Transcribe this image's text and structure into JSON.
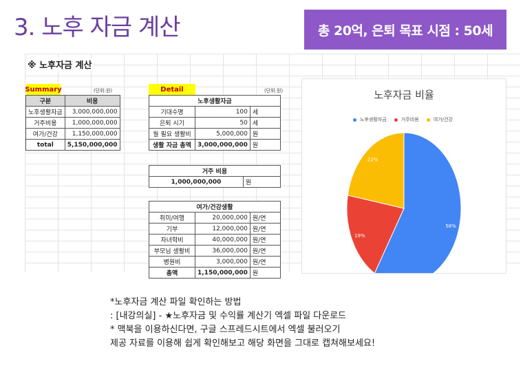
{
  "page": {
    "title": "3. 노후 자금 계산",
    "banner": "총 20억, 은퇴 목표 시점 : 50세"
  },
  "sheet": {
    "title": "※ 노후자금 계산",
    "summary": {
      "label": "Summary",
      "unit": "(단위:원)",
      "headers": [
        "구분",
        "비용"
      ],
      "rows": [
        {
          "name": "노후생활자금",
          "value": "3,000,000,000"
        },
        {
          "name": "거주비용",
          "value": "1,000,000,000"
        },
        {
          "name": "여가/건강",
          "value": "1,150,000,000"
        }
      ],
      "total": {
        "name": "total",
        "value": "5,150,000,000"
      }
    },
    "detail": {
      "label": "Detail",
      "unit": "(단위:원)",
      "living": {
        "header": "노후생활자금",
        "rows": [
          {
            "name": "기대수명",
            "value": "100",
            "unit": "세"
          },
          {
            "name": "은퇴 시기",
            "value": "50",
            "unit": "세"
          },
          {
            "name": "월 필요 생활비",
            "value": "5,000,000",
            "unit": "원"
          }
        ],
        "total": {
          "name": "생활 자금 총액",
          "value": "3,000,000,000",
          "unit": "원"
        }
      },
      "housing": {
        "header": "거주 비용",
        "value": "1,000,000,000",
        "unit": "원"
      },
      "leisure": {
        "header": "여가/건강생활",
        "rows": [
          {
            "name": "취미/여행",
            "value": "20,000,000",
            "unit": "원/연"
          },
          {
            "name": "기부",
            "value": "12,000,000",
            "unit": "원/연"
          },
          {
            "name": "자녀학비",
            "value": "40,000,000",
            "unit": "원/연"
          },
          {
            "name": "부모님 생활비",
            "value": "36,000,000",
            "unit": "원/연"
          },
          {
            "name": "병원비",
            "value": "3,000,000",
            "unit": "원/연"
          }
        ],
        "total": {
          "name": "총액",
          "value": "1,150,000,000",
          "unit": "원"
        }
      }
    }
  },
  "chart_data": {
    "type": "pie",
    "title": "노후자금 비율",
    "categories": [
      "노후생활자금",
      "거주비용",
      "여가/건강"
    ],
    "values": [
      58,
      19,
      22
    ],
    "labels": [
      "58%",
      "19%",
      "22%"
    ],
    "colors": [
      "#4285f4",
      "#ea4335",
      "#fbbc04"
    ],
    "legend_position": "top"
  },
  "notes": [
    "*노후자금 계산 파일 확인하는 방법",
    ": [내강의실] - ★노후자금 및 수익률 계산기 엑셀 파일 다운로드",
    "* 맥북을 이용하신다면, 구글 스프레드시트에서 엑셀 불러오기",
    "",
    "제공 자료를 이용해 쉽게 확인해보고 해당 화면을 그대로 캡쳐해보세요!"
  ]
}
